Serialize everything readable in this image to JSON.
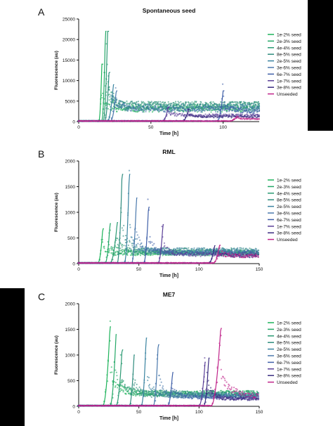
{
  "colors": {
    "background": "#ffffff",
    "side_bars": "#000000",
    "series_palette": [
      "#1db35a",
      "#23a766",
      "#2a9a72",
      "#2f8c7e",
      "#3a83a0",
      "#4a78ac",
      "#3f5fa8",
      "#5a3f98",
      "#3a2c80",
      "#c0248a"
    ]
  },
  "chart_data": [
    {
      "type": "scatter",
      "panel_letter": "A",
      "title": "Spontaneous seed",
      "xlabel": "Time [h]",
      "ylabel": "Fluorescence (au)",
      "xlim": [
        0,
        125
      ],
      "ylim": [
        0,
        25000
      ],
      "xticks": [
        0,
        50,
        100
      ],
      "yticks": [
        0,
        5000,
        10000,
        15000,
        20000,
        25000
      ],
      "ytick_labels": [
        "0",
        "5000",
        "10000",
        "15000",
        "20000",
        "25000"
      ],
      "grid": false,
      "legend_position": "right",
      "series": [
        {
          "name": "1e-2% seed",
          "color": "#1db35a",
          "onset": 14,
          "peak": 16,
          "peak_value": 14000,
          "tail": 3000
        },
        {
          "name": "2e-3% seed",
          "color": "#23a766",
          "onset": 16,
          "peak": 18.5,
          "peak_value": 22000,
          "tail": 3500
        },
        {
          "name": "4e-4% seed",
          "color": "#2a9a72",
          "onset": 17,
          "peak": 20,
          "peak_value": 22000,
          "tail": 4000
        },
        {
          "name": "8e-5% seed",
          "color": "#2f8c7e",
          "onset": 18,
          "peak": 21,
          "peak_value": 12000,
          "tail": 4000
        },
        {
          "name": "2e-5% seed",
          "color": "#3a83a0",
          "onset": 20,
          "peak": 24,
          "peak_value": 9000,
          "tail": 3500
        },
        {
          "name": "3e-6% seed",
          "color": "#4a78ac",
          "onset": 22,
          "peak": 26,
          "peak_value": 7500,
          "tail": 3000
        },
        {
          "name": "6e-7% seed",
          "color": "#3f5fa8",
          "onset": 96,
          "peak": 100,
          "peak_value": 7500,
          "tail": 2500
        },
        {
          "name": "1e-7% seed",
          "color": "#5a3f98",
          "onset": 58,
          "peak": 62,
          "peak_value": 3500,
          "tail": 1500
        },
        {
          "name": "3e-8% seed",
          "color": "#3a2c80",
          "onset": 72,
          "peak": 76,
          "peak_value": 3000,
          "tail": 1200
        },
        {
          "name": "Unseeded",
          "color": "#c0248a",
          "onset": 104,
          "peak": 110,
          "peak_value": 1200,
          "tail": 600
        }
      ]
    },
    {
      "type": "scatter",
      "panel_letter": "B",
      "title": "RML",
      "xlabel": "Time [h]",
      "ylabel": "Fluorescence (au)",
      "xlim": [
        0,
        150
      ],
      "ylim": [
        0,
        2000
      ],
      "xticks": [
        0,
        50,
        100,
        150
      ],
      "yticks": [
        0,
        500,
        1000,
        1500,
        2000
      ],
      "ytick_labels": [
        "0",
        "500",
        "1000",
        "1500",
        "2000"
      ],
      "grid": false,
      "legend_position": "right",
      "series": [
        {
          "name": "1e-2% seed",
          "color": "#1db35a",
          "onset": 16,
          "peak": 20,
          "peak_value": 680,
          "tail": 200
        },
        {
          "name": "2e-3% seed",
          "color": "#23a766",
          "onset": 22,
          "peak": 26,
          "peak_value": 780,
          "tail": 220
        },
        {
          "name": "4e-4% seed",
          "color": "#2a9a72",
          "onset": 26,
          "peak": 32,
          "peak_value": 800,
          "tail": 220
        },
        {
          "name": "8e-5% seed",
          "color": "#2f8c7e",
          "onset": 32,
          "peak": 36,
          "peak_value": 1740,
          "tail": 250
        },
        {
          "name": "2e-5% seed",
          "color": "#3a83a0",
          "onset": 38,
          "peak": 42,
          "peak_value": 1740,
          "tail": 250
        },
        {
          "name": "3e-6% seed",
          "color": "#4a78ac",
          "onset": 44,
          "peak": 48,
          "peak_value": 1280,
          "tail": 220
        },
        {
          "name": "6e-7% seed",
          "color": "#3f5fa8",
          "onset": 54,
          "peak": 58,
          "peak_value": 1100,
          "tail": 200
        },
        {
          "name": "1e-7% seed",
          "color": "#5a3f98",
          "onset": 66,
          "peak": 70,
          "peak_value": 760,
          "tail": 180
        },
        {
          "name": "3e-8% seed",
          "color": "#3a2c80",
          "onset": 108,
          "peak": 113,
          "peak_value": 350,
          "tail": 150
        },
        {
          "name": "Unseeded",
          "color": "#c0248a",
          "onset": 112,
          "peak": 117,
          "peak_value": 360,
          "tail": 150
        }
      ]
    },
    {
      "type": "scatter",
      "panel_letter": "C",
      "title": "ME7",
      "xlabel": "Time [h]",
      "ylabel": "Fluorescence (au)",
      "xlim": [
        0,
        150
      ],
      "ylim": [
        0,
        2000
      ],
      "xticks": [
        0,
        50,
        100,
        150
      ],
      "yticks": [
        0,
        500,
        1000,
        1500,
        2000
      ],
      "ytick_labels": [
        "0",
        "500",
        "1000",
        "1500",
        "2000"
      ],
      "grid": false,
      "legend_position": "right",
      "series": [
        {
          "name": "1e-2% seed",
          "color": "#1db35a",
          "onset": 20,
          "peak": 26,
          "peak_value": 1550,
          "tail": 250
        },
        {
          "name": "2e-3% seed",
          "color": "#23a766",
          "onset": 26,
          "peak": 31,
          "peak_value": 1400,
          "tail": 250
        },
        {
          "name": "4e-4% seed",
          "color": "#2a9a72",
          "onset": 31,
          "peak": 36,
          "peak_value": 1100,
          "tail": 250
        },
        {
          "name": "8e-5% seed",
          "color": "#2f8c7e",
          "onset": 42,
          "peak": 46,
          "peak_value": 1000,
          "tail": 220
        },
        {
          "name": "2e-5% seed",
          "color": "#3a83a0",
          "onset": 52,
          "peak": 56,
          "peak_value": 1330,
          "tail": 220
        },
        {
          "name": "3e-6% seed",
          "color": "#4a78ac",
          "onset": 62,
          "peak": 66,
          "peak_value": 1200,
          "tail": 200
        },
        {
          "name": "6e-7% seed",
          "color": "#3f5fa8",
          "onset": 74,
          "peak": 78,
          "peak_value": 660,
          "tail": 180
        },
        {
          "name": "1e-7% seed",
          "color": "#5a3f98",
          "onset": 100,
          "peak": 105,
          "peak_value": 860,
          "tail": 150
        },
        {
          "name": "3e-8% seed",
          "color": "#3a2c80",
          "onset": 104,
          "peak": 108,
          "peak_value": 940,
          "tail": 150
        },
        {
          "name": "Unseeded",
          "color": "#c0248a",
          "onset": 110,
          "peak": 118,
          "peak_value": 1520,
          "tail": 200
        }
      ]
    }
  ]
}
